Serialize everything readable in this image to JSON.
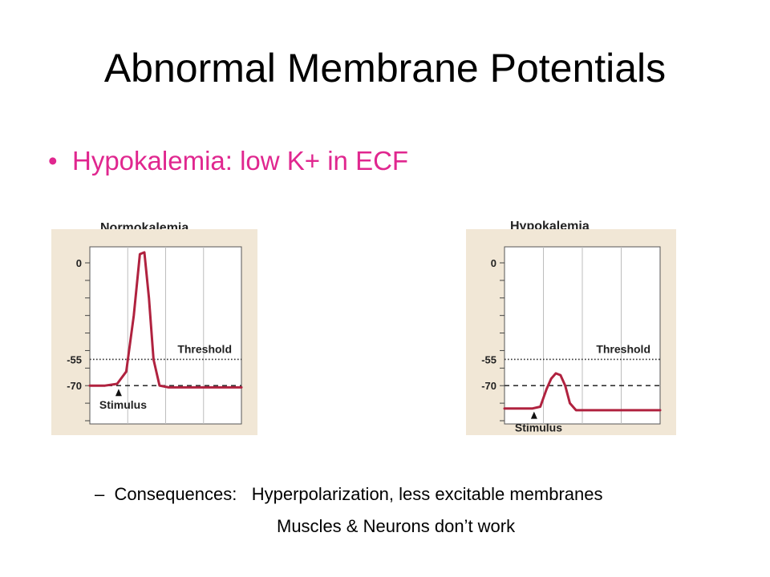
{
  "slide": {
    "title": "Abnormal Membrane Potentials",
    "bullet": "Hypokalemia:  low K+ in ECF",
    "sub1_dash": "–",
    "sub1_label": "Consequences:",
    "sub1_text": "Hyperpolarization, less excitable membranes",
    "sub2_text": "Muscles & Neurons don’t work"
  },
  "colors": {
    "bullet": "#e0278f",
    "trace": "#b0223f",
    "panel_bg": "#f1e7d6",
    "plot_bg": "#ffffff"
  },
  "chart_data": [
    {
      "type": "line",
      "title": "Normokalemia",
      "ylim": [
        0,
        -90
      ],
      "y_ticks": [
        0,
        -55,
        -70
      ],
      "threshold": -55,
      "threshold_label": "Threshold",
      "resting": -70,
      "stimulus_label": "Stimulus",
      "series": [
        {
          "x": [
            0,
            1,
            1.8,
            2.4,
            2.9,
            3.3,
            3.6,
            3.9,
            4.2,
            4.6,
            5.2,
            6.5,
            10
          ],
          "y": [
            -70,
            -70,
            -69,
            -62,
            -30,
            5,
            6,
            -20,
            -55,
            -70,
            -71,
            -71,
            -71
          ]
        }
      ]
    },
    {
      "type": "line",
      "title": "Hypokalemia",
      "ylim": [
        0,
        -90
      ],
      "y_ticks": [
        0,
        -55,
        -70
      ],
      "threshold": -55,
      "threshold_label": "Threshold",
      "resting": -70,
      "stimulus_label": "Stimulus",
      "series": [
        {
          "x": [
            0,
            1.8,
            2.3,
            2.7,
            3.0,
            3.3,
            3.6,
            3.9,
            4.2,
            4.6,
            5.2,
            10
          ],
          "y": [
            -83,
            -83,
            -82,
            -72,
            -66,
            -63,
            -64,
            -70,
            -80,
            -84,
            -84,
            -84
          ]
        }
      ]
    }
  ]
}
